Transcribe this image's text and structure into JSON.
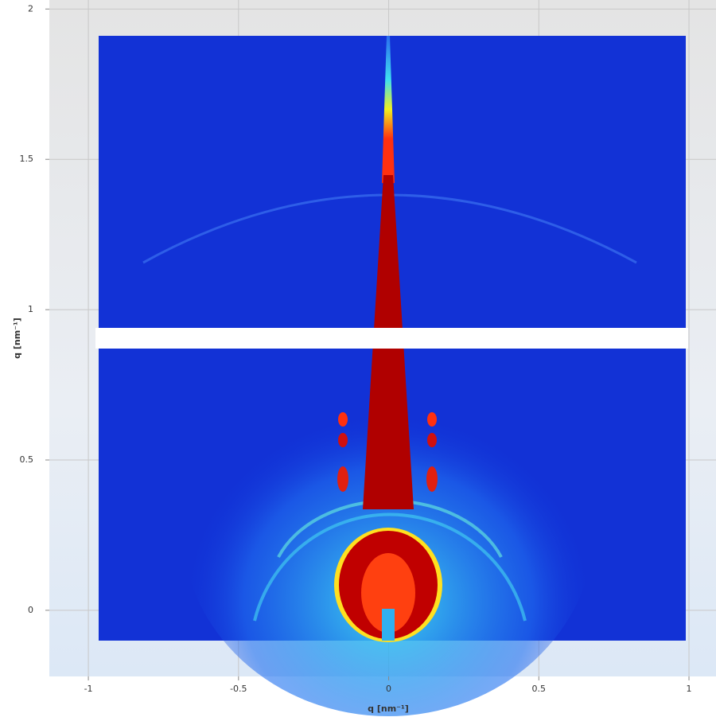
{
  "chart_data": {
    "type": "heatmap",
    "x_label": "q [nm⁻¹]",
    "y_label": "q [nm⁻¹]",
    "xlim": [
      -1.13,
      1.09
    ],
    "ylim": [
      -0.22,
      2.03
    ],
    "xticks": [
      -1,
      -0.5,
      0,
      0.5,
      1
    ],
    "yticks": [
      0,
      0.5,
      1,
      1.5,
      2
    ],
    "grid": true
  }
}
